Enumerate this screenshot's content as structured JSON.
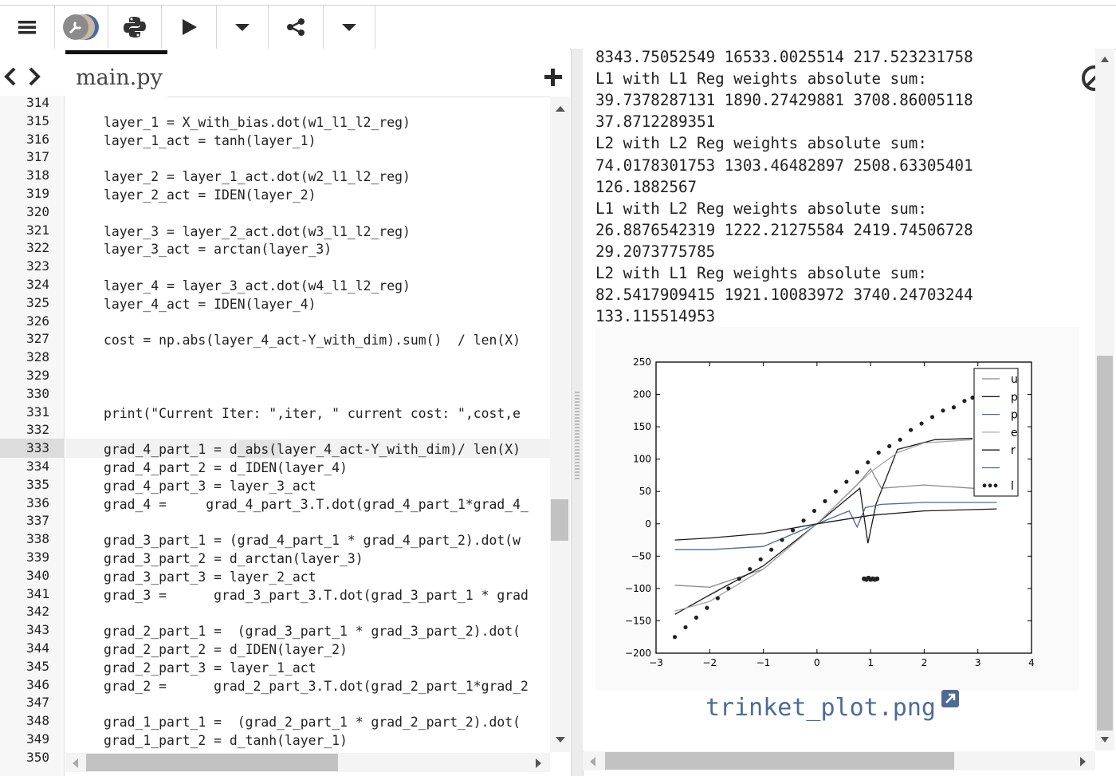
{
  "toolbar": {
    "menu_icon": "menu-icon",
    "powerup_icon": "wrench-icon",
    "language_icon": "python-icon",
    "run_icon": "play-icon",
    "run_menu_icon": "caret-down-icon",
    "share_icon": "share-icon",
    "share_menu_icon": "caret-down-icon"
  },
  "editor": {
    "tab_label": "main.py",
    "lines": [
      {
        "n": "314",
        "code": ""
      },
      {
        "n": "315",
        "code": "layer_1 = X_with_bias.dot(w1_l1_l2_reg)"
      },
      {
        "n": "316",
        "code": "layer_1_act = tanh(layer_1)"
      },
      {
        "n": "317",
        "code": ""
      },
      {
        "n": "318",
        "code": "layer_2 = layer_1_act.dot(w2_l1_l2_reg)"
      },
      {
        "n": "319",
        "code": "layer_2_act = IDEN(layer_2)"
      },
      {
        "n": "320",
        "code": ""
      },
      {
        "n": "321",
        "code": "layer_3 = layer_2_act.dot(w3_l1_l2_reg)"
      },
      {
        "n": "322",
        "code": "layer_3_act = arctan(layer_3)"
      },
      {
        "n": "323",
        "code": ""
      },
      {
        "n": "324",
        "code": "layer_4 = layer_3_act.dot(w4_l1_l2_reg)"
      },
      {
        "n": "325",
        "code": "layer_4_act = IDEN(layer_4)"
      },
      {
        "n": "326",
        "code": ""
      },
      {
        "n": "327",
        "code": "cost = np.abs(layer_4_act-Y_with_dim).sum()  / len(X)"
      },
      {
        "n": "328",
        "code": ""
      },
      {
        "n": "329",
        "code": ""
      },
      {
        "n": "330",
        "code": ""
      },
      {
        "n": "331",
        "code": "print(\"Current Iter: \",iter, \" current cost: \",cost,e"
      },
      {
        "n": "332",
        "code": ""
      },
      {
        "n": "333",
        "code": "grad_4_part_1 = d_abs(layer_4_act-Y_with_dim)/ len(X)"
      },
      {
        "n": "334",
        "code": "grad_4_part_2 = d_IDEN(layer_4)"
      },
      {
        "n": "335",
        "code": "grad_4_part_3 = layer_3_act"
      },
      {
        "n": "336",
        "code": "grad_4 =     grad_4_part_3.T.dot(grad_4_part_1*grad_4_"
      },
      {
        "n": "337",
        "code": ""
      },
      {
        "n": "338",
        "code": "grad_3_part_1 = (grad_4_part_1 * grad_4_part_2).dot(w"
      },
      {
        "n": "339",
        "code": "grad_3_part_2 = d_arctan(layer_3)"
      },
      {
        "n": "340",
        "code": "grad_3_part_3 = layer_2_act"
      },
      {
        "n": "341",
        "code": "grad_3 =      grad_3_part_3.T.dot(grad_3_part_1 * grad"
      },
      {
        "n": "342",
        "code": ""
      },
      {
        "n": "343",
        "code": "grad_2_part_1 =  (grad_3_part_1 * grad_3_part_2).dot("
      },
      {
        "n": "344",
        "code": "grad_2_part_2 = d_IDEN(layer_2)"
      },
      {
        "n": "345",
        "code": "grad_2_part_3 = layer_1_act"
      },
      {
        "n": "346",
        "code": "grad_2 =      grad_2_part_3.T.dot(grad_2_part_1*grad_2"
      },
      {
        "n": "347",
        "code": ""
      },
      {
        "n": "348",
        "code": "grad_1_part_1 =  (grad_2_part_1 * grad_2_part_2).dot("
      },
      {
        "n": "349",
        "code": "grad_1_part_2 = d_tanh(layer_1)"
      },
      {
        "n": "350",
        "code": ""
      }
    ]
  },
  "output": {
    "lines": [
      "8343.75052549 16533.0025514 217.523231758",
      "L1 with L1 Reg weights absolute sum:",
      "39.7378287131 1890.27429881 3708.86005118",
      "37.8712289351",
      "L2 with L2 Reg weights absolute sum:",
      "74.0178301753 1303.46482897 2508.63305401",
      "126.1882567",
      "L1 with L2 Reg weights absolute sum:",
      "26.8876542319 1222.21275584 2419.74506728",
      "29.2073775785",
      "L2 with L1 Reg weights absolute sum:",
      "82.5417909415 1921.10083972 3740.24703244",
      "133.115514953"
    ],
    "plot_filename": "trinket_plot.png",
    "popout_icon": "external-link-icon",
    "clear_icon": "no-entry-icon"
  },
  "chart_data": {
    "type": "line",
    "xlim": [
      -3,
      4
    ],
    "ylim": [
      -200,
      250
    ],
    "xticks": [
      "−3",
      "−2",
      "−1",
      "0",
      "1",
      "2",
      "3",
      "4"
    ],
    "yticks": [
      "250",
      "200",
      "150",
      "100",
      "50",
      "0",
      "−50",
      "−100",
      "−150",
      "−200"
    ],
    "legend_position": "upper right",
    "legend_labels": [
      "u",
      "p",
      "p",
      "e",
      "r",
      "",
      "l"
    ],
    "colors": {
      "gray": "#8a8a8a",
      "black": "#1a1a1a",
      "blue": "#4a6a9a",
      "light": "#a8a8a8",
      "points": "#222222"
    },
    "series": [
      {
        "style": "gray",
        "x": [
          -2.65,
          -2.0,
          -1.0,
          0.0,
          0.8,
          1.0,
          1.2,
          2.0,
          2.9,
          3.35
        ],
        "y": [
          -95,
          -98,
          -70,
          0,
          65,
          85,
          55,
          60,
          55,
          55
        ]
      },
      {
        "style": "black",
        "x": [
          -2.65,
          -2.0,
          -1.0,
          0.0,
          0.8,
          0.95,
          1.1,
          1.5,
          2.2,
          2.9
        ],
        "y": [
          -140,
          -110,
          -65,
          0,
          55,
          -30,
          30,
          115,
          130,
          132
        ]
      },
      {
        "style": "blue",
        "x": [
          -2.65,
          -2.0,
          -1.0,
          0.0,
          0.6,
          0.75,
          0.9,
          1.2,
          2.0,
          3.35
        ],
        "y": [
          -40,
          -40,
          -35,
          0,
          20,
          -5,
          25,
          30,
          33,
          33
        ]
      },
      {
        "style": "light",
        "x": [
          -2.65,
          -2.0,
          -1.0,
          0.0,
          1.0,
          1.5,
          2.0,
          2.9
        ],
        "y": [
          -135,
          -120,
          -70,
          0,
          80,
          110,
          125,
          130
        ]
      },
      {
        "style": "black",
        "x": [
          -2.65,
          -2.0,
          -1.0,
          0.0,
          1.0,
          2.0,
          3.35
        ],
        "y": [
          -25,
          -22,
          -15,
          0,
          13,
          20,
          23
        ]
      }
    ],
    "scatter": {
      "main_x": [
        -2.65,
        -2.45,
        -2.25,
        -2.05,
        -1.85,
        -1.65,
        -1.45,
        -1.25,
        -1.05,
        -0.85,
        -0.65,
        -0.45,
        -0.25,
        -0.05,
        0.15,
        0.35,
        0.55,
        0.75,
        0.95,
        1.15,
        1.35,
        1.55,
        1.75,
        1.95,
        2.15,
        2.35,
        2.55,
        2.75,
        2.9
      ],
      "main_y": [
        -175,
        -160,
        -145,
        -130,
        -115,
        -100,
        -85,
        -70,
        -55,
        -40,
        -25,
        -10,
        5,
        20,
        35,
        50,
        65,
        80,
        95,
        110,
        120,
        130,
        145,
        155,
        165,
        175,
        180,
        190,
        195
      ],
      "cluster_x": [
        0.88,
        0.92,
        0.96,
        1.0,
        1.04,
        1.08,
        1.12
      ],
      "cluster_y": [
        -85,
        -86,
        -84,
        -86,
        -85,
        -86,
        -85
      ]
    }
  }
}
